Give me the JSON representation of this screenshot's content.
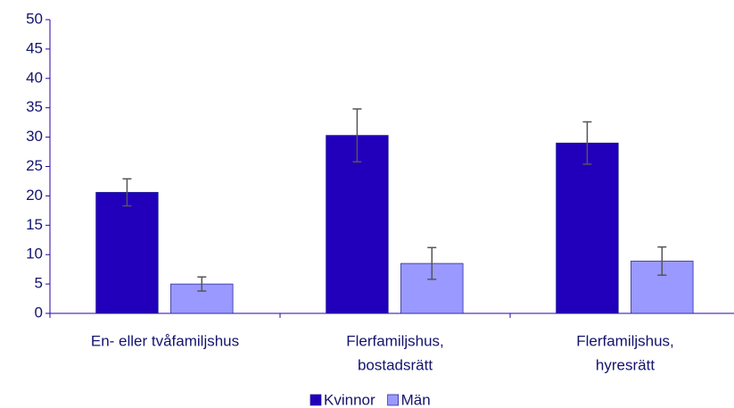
{
  "chart_data": {
    "type": "bar",
    "categories": [
      [
        "En- eller tvåfamiljshus"
      ],
      [
        "Flerfamiljshus,",
        "bostadsrätt"
      ],
      [
        "Flerfamiljshus,",
        "hyresrätt"
      ]
    ],
    "series": [
      {
        "name": "Kvinnor",
        "color": "#2200bb",
        "values": [
          20.6,
          30.3,
          29.0
        ],
        "errors": [
          2.3,
          4.5,
          3.6
        ]
      },
      {
        "name": "Män",
        "color": "#9999ff",
        "values": [
          5.0,
          8.5,
          8.9
        ],
        "errors": [
          1.2,
          2.7,
          2.4
        ]
      }
    ],
    "ylim": [
      0,
      50
    ],
    "yticks": [
      0,
      5,
      10,
      15,
      20,
      25,
      30,
      35,
      40,
      45,
      50
    ],
    "grid": false,
    "legend": "bottom"
  }
}
